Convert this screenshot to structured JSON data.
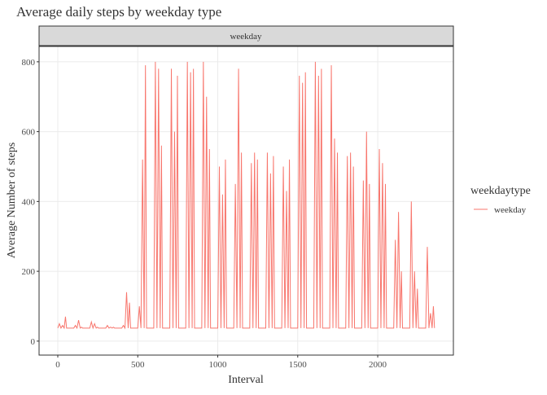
{
  "chart_data": {
    "type": "line",
    "title": "Average daily steps by weekday type",
    "facet": "weekday",
    "xlabel": "Interval",
    "ylabel": "Average Number of steps",
    "legend_title": "weekdaytype",
    "legend_position": "right",
    "grid": true,
    "xlim": [
      -117,
      2473
    ],
    "ylim": [
      -40,
      844
    ],
    "xticks": [
      0,
      500,
      1000,
      1500,
      2000
    ],
    "yticks": [
      0,
      200,
      400,
      600,
      800
    ],
    "x": [
      0,
      10,
      20,
      30,
      40,
      48,
      55,
      100,
      110,
      120,
      130,
      140,
      148,
      155,
      200,
      210,
      220,
      230,
      240,
      248,
      255,
      300,
      310,
      320,
      330,
      340,
      348,
      355,
      400,
      410,
      420,
      430,
      440,
      448,
      455,
      500,
      510,
      520,
      530,
      540,
      548,
      555,
      600,
      610,
      620,
      630,
      640,
      648,
      655,
      700,
      710,
      720,
      730,
      740,
      748,
      755,
      800,
      810,
      820,
      830,
      840,
      848,
      855,
      900,
      910,
      920,
      930,
      940,
      948,
      955,
      1000,
      1010,
      1020,
      1030,
      1040,
      1048,
      1055,
      1100,
      1110,
      1120,
      1130,
      1140,
      1148,
      1155,
      1200,
      1210,
      1220,
      1230,
      1240,
      1248,
      1255,
      1300,
      1310,
      1320,
      1330,
      1340,
      1348,
      1355,
      1400,
      1410,
      1420,
      1430,
      1440,
      1448,
      1455,
      1500,
      1510,
      1520,
      1530,
      1540,
      1548,
      1555,
      1600,
      1610,
      1620,
      1630,
      1640,
      1648,
      1655,
      1700,
      1710,
      1720,
      1730,
      1740,
      1748,
      1755,
      1800,
      1810,
      1820,
      1830,
      1840,
      1848,
      1855,
      1900,
      1910,
      1920,
      1930,
      1940,
      1948,
      1955,
      2000,
      2010,
      2020,
      2030,
      2040,
      2048,
      2055,
      2100,
      2110,
      2120,
      2130,
      2140,
      2148,
      2155,
      2200,
      2210,
      2220,
      2230,
      2240,
      2248,
      2255,
      2300,
      2310,
      2320,
      2330,
      2340,
      2348,
      2355
    ],
    "series": [
      {
        "name": "weekday",
        "color": "#F8766D",
        "values": [
          37.4,
          50,
          37.4,
          45,
          37.4,
          70,
          37.4,
          37.4,
          45,
          37.4,
          60,
          37.4,
          40,
          37.4,
          37.4,
          55,
          37.4,
          50,
          37.4,
          40,
          37.4,
          37.4,
          45,
          37.4,
          40,
          37.4,
          40,
          37.4,
          37.4,
          45,
          37.4,
          140,
          37.4,
          110,
          37.4,
          37.4,
          100,
          37.4,
          520,
          37.4,
          790,
          37.4,
          37.4,
          800,
          37.4,
          780,
          37.4,
          560,
          37.4,
          37.4,
          780,
          37.4,
          600,
          37.4,
          760,
          37.4,
          37.4,
          800,
          37.4,
          770,
          37.4,
          780,
          37.4,
          37.4,
          800,
          37.4,
          700,
          37.4,
          550,
          37.4,
          37.4,
          500,
          37.4,
          420,
          37.4,
          520,
          37.4,
          37.4,
          450,
          37.4,
          780,
          37.4,
          540,
          37.4,
          37.4,
          510,
          37.4,
          540,
          37.4,
          520,
          37.4,
          37.4,
          540,
          37.4,
          480,
          37.4,
          530,
          37.4,
          37.4,
          500,
          37.4,
          430,
          37.4,
          520,
          37.4,
          37.4,
          760,
          37.4,
          740,
          37.4,
          770,
          37.4,
          37.4,
          800,
          37.4,
          760,
          37.4,
          780,
          37.4,
          37.4,
          790,
          37.4,
          580,
          37.4,
          540,
          37.4,
          37.4,
          530,
          37.4,
          540,
          37.4,
          500,
          37.4,
          37.4,
          460,
          37.4,
          600,
          37.4,
          450,
          37.4,
          37.4,
          550,
          37.4,
          510,
          37.4,
          450,
          37.4,
          37.4,
          290,
          37.4,
          370,
          37.4,
          200,
          37.4,
          37.4,
          400,
          37.4,
          200,
          37.4,
          150,
          37.4,
          37.4,
          270,
          37.4,
          80,
          37.4,
          100,
          37.4
        ]
      }
    ]
  }
}
